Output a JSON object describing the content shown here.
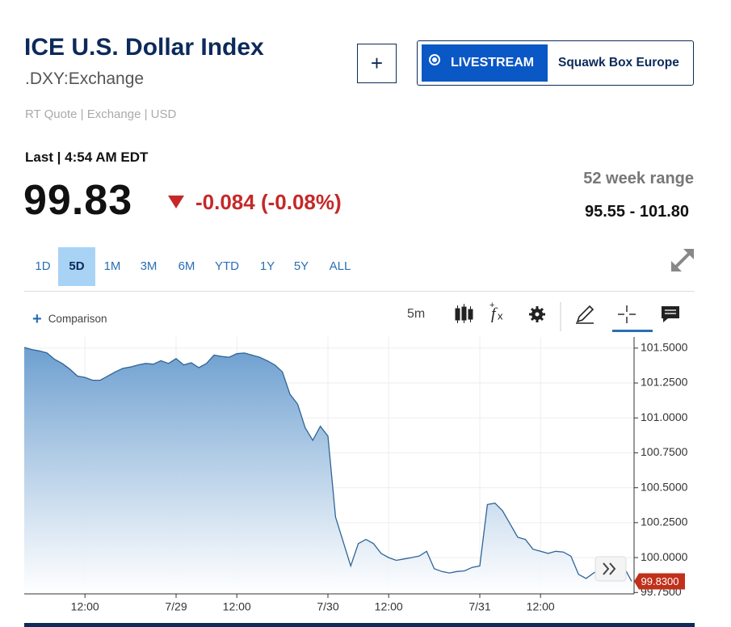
{
  "header": {
    "title": "ICE U.S. Dollar Index",
    "symbol": ".DXY:Exchange",
    "quote_info": "RT Quote | Exchange | USD",
    "add_button": "+",
    "livestream": "LIVESTREAM",
    "show": "Squawk Box Europe"
  },
  "quote": {
    "last_time": "Last | 4:54 AM EDT",
    "price": "99.83",
    "change": "-0.084 (-0.08%)",
    "range_label": "52 week range",
    "range": "95.55 - 101.80"
  },
  "tabs": [
    {
      "label": "1D",
      "active": false
    },
    {
      "label": "5D",
      "active": true
    },
    {
      "label": "1M",
      "active": false
    },
    {
      "label": "3M",
      "active": false
    },
    {
      "label": "6M",
      "active": false
    },
    {
      "label": "YTD",
      "active": false
    },
    {
      "label": "1Y",
      "active": false
    },
    {
      "label": "5Y",
      "active": false
    },
    {
      "label": "ALL",
      "active": false
    }
  ],
  "toolbar": {
    "comparison": "Comparison",
    "interval": "5m"
  },
  "chart_data": {
    "type": "line",
    "color": "#2f6496",
    "categories": [
      null,
      null,
      null,
      null,
      null,
      null,
      null,
      null,
      "12:00",
      null,
      null,
      null,
      null,
      null,
      null,
      null,
      null,
      null,
      null,
      null,
      "7/29",
      null,
      null,
      null,
      null,
      null,
      null,
      null,
      "12:00",
      null,
      null,
      null,
      null,
      null,
      null,
      null,
      null,
      null,
      null,
      null,
      "7/30",
      null,
      null,
      null,
      null,
      null,
      null,
      null,
      "12:00",
      null,
      null,
      null,
      null,
      null,
      null,
      null,
      null,
      null,
      null,
      null,
      "7/31",
      null,
      null,
      null,
      null,
      null,
      null,
      null,
      "12:00",
      null,
      null,
      null,
      null,
      null,
      null,
      null,
      null,
      null,
      null,
      null,
      null
    ],
    "values": [
      101.505,
      101.49,
      101.48,
      101.465,
      101.42,
      101.39,
      101.35,
      101.3,
      101.29,
      101.27,
      101.27,
      101.3,
      101.33,
      101.355,
      101.365,
      101.38,
      101.39,
      101.385,
      101.41,
      101.39,
      101.425,
      101.38,
      101.395,
      101.36,
      101.39,
      101.45,
      101.44,
      101.435,
      101.46,
      101.465,
      101.45,
      101.435,
      101.41,
      101.38,
      101.33,
      101.17,
      101.1,
      100.93,
      100.84,
      100.94,
      100.87,
      100.29,
      100.115,
      99.94,
      100.1,
      100.13,
      100.1,
      100.03,
      100.0,
      99.98,
      99.99,
      100.0,
      100.01,
      100.045,
      99.92,
      99.9,
      99.89,
      99.9,
      99.905,
      99.93,
      99.94,
      100.38,
      100.39,
      100.335,
      100.24,
      100.145,
      100.13,
      100.06,
      100.045,
      100.03,
      100.045,
      100.04,
      100.01,
      99.88,
      99.85,
      99.89,
      99.92,
      99.93,
      99.94,
      99.93,
      99.83
    ],
    "ylim": [
      99.74,
      101.58
    ],
    "yticks": [
      {
        "value": 99.75,
        "label": "99.7500"
      },
      {
        "value": 100.0,
        "label": "100.0000"
      },
      {
        "value": 100.25,
        "label": "100.2500"
      },
      {
        "value": 100.5,
        "label": "100.5000"
      },
      {
        "value": 100.75,
        "label": "100.7500"
      },
      {
        "value": 101.0,
        "label": "101.0000"
      },
      {
        "value": 101.25,
        "label": "101.2500"
      },
      {
        "value": 101.5,
        "label": "101.5000"
      }
    ],
    "last_value": {
      "value": 99.83,
      "label": "99.8300"
    },
    "grid": true
  }
}
